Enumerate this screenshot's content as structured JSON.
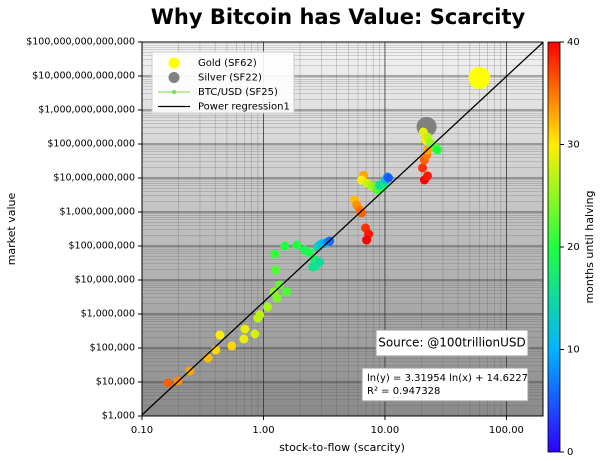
{
  "chart_data": {
    "type": "scatter",
    "title": "Why Bitcoin has Value: Scarcity",
    "xlabel": "stock-to-flow (scarcity)",
    "ylabel": "market value",
    "xscale": "log",
    "yscale": "log",
    "xlim": [
      0.1,
      200
    ],
    "ylim": [
      1000,
      100000000000000
    ],
    "xticks": [
      {
        "value": 0.1,
        "label": "0.10"
      },
      {
        "value": 1,
        "label": "1.00"
      },
      {
        "value": 10,
        "label": "10.00"
      },
      {
        "value": 100,
        "label": "100.00"
      }
    ],
    "yticks": [
      {
        "value": 1000,
        "label": "$1,000"
      },
      {
        "value": 10000,
        "label": "$10,000"
      },
      {
        "value": 100000,
        "label": "$100,000"
      },
      {
        "value": 1000000,
        "label": "$1,000,000"
      },
      {
        "value": 10000000,
        "label": "$10,000,000"
      },
      {
        "value": 100000000,
        "label": "$100,000,000"
      },
      {
        "value": 1000000000,
        "label": "$1,000,000,000"
      },
      {
        "value": 10000000000,
        "label": "$10,000,000,000"
      },
      {
        "value": 100000000000,
        "label": "$100,000,000,000"
      },
      {
        "value": 1000000000000,
        "label": "$1,000,000,000,000"
      },
      {
        "value": 10000000000000,
        "label": "$10,000,000,000,000"
      },
      {
        "value": 100000000000000,
        "label": "$100,000,000,000,000"
      }
    ],
    "grid": true,
    "legend": "upper left",
    "series": [
      {
        "name": "Gold (SF62)",
        "color": "#ffff00",
        "x": [
          60
        ],
        "values": [
          8700000000000
        ]
      },
      {
        "name": "Silver (SF22)",
        "color": "#808080",
        "x": [
          22
        ],
        "values": [
          320000000000
        ]
      },
      {
        "name": "BTC/USD (SF25)",
        "color": "#7ed957",
        "x": [
          0.164,
          0.198,
          0.248,
          0.349,
          0.405,
          0.549,
          0.437,
          0.689,
          0.703,
          0.849,
          0.898,
          0.933,
          1.08,
          1.29,
          1.22,
          1.55,
          1.36,
          1.26,
          1.24,
          1.5,
          1.88,
          2.18,
          2.4,
          2.64,
          2.69,
          2.54,
          2.9,
          2.79,
          2.9,
          3.01,
          3.19,
          3.38,
          3.51,
          6.67,
          5.62,
          5.85,
          6.18,
          6.42,
          6.93,
          7.33,
          7.06,
          6.42,
          7.06,
          7.76,
          8.37,
          8.69,
          9.38,
          9.03,
          9.93,
          10.1,
          10.5,
          10.7,
          21.1,
          22.4,
          20.4,
          21.1,
          22,
          22.4,
          21.6,
          20.7,
          22.4,
          23.7,
          26.1,
          27
        ],
        "values": [
          9350,
          10700,
          21100,
          50800,
          87300,
          115000,
          241000,
          184000,
          362000,
          258000,
          762000,
          935000,
          1610000,
          2960000,
          4440000,
          4440000,
          7130000,
          19700000,
          58200000,
          100000000,
          107000000,
          76200000,
          62200000,
          38700000,
          25800000,
          24100000,
          33800000,
          93500000,
          107000000,
          115000000,
          122000000,
          131000000,
          140000000,
          12200000000,
          2250000000,
          1610000000,
          1150000000,
          935000000,
          338000000,
          225000000,
          150000000,
          8730000000,
          7130000000,
          5820000000,
          5820000000,
          4440000000,
          5080000000,
          6220000000,
          7130000000,
          8730000000,
          10700000000,
          10000000000,
          8730000000,
          11500000000,
          19700000000,
          33800000000,
          47400000000,
          66700000000,
          131000000000,
          225000000000,
          161000000000,
          107000000000,
          76200000000,
          66700000000
        ],
        "months": [
          36,
          34,
          33,
          32,
          31,
          31,
          30,
          29,
          29,
          28,
          27,
          27,
          26,
          24,
          25,
          22,
          23,
          22,
          21,
          20,
          20,
          19,
          19,
          18,
          17,
          16,
          15,
          14,
          13,
          12,
          10,
          8,
          6,
          33,
          32,
          34,
          35,
          36,
          38,
          39,
          40,
          30,
          28,
          26,
          24,
          22,
          20,
          15,
          17,
          12,
          8,
          5,
          40,
          39,
          38,
          36,
          35,
          33,
          30,
          29,
          27,
          25,
          22,
          20
        ]
      },
      {
        "name": "Power regression1",
        "color": "#000000",
        "slope": 3.31954,
        "intercept": 14.6227
      }
    ],
    "colorbar": {
      "label": "months until halving",
      "lim": [
        0,
        40
      ],
      "ticks": [
        0,
        10,
        20,
        30,
        40
      ],
      "colormap": [
        "#3000ff",
        "#00b4ff",
        "#20ff40",
        "#ffee00",
        "#ff0000"
      ]
    },
    "annotations": [
      {
        "text": "Source: @100trillionUSD"
      },
      {
        "lines": [
          "ln(y) = 3.31954 ln(x) + 14.6227",
          "R² = 0.947328"
        ]
      }
    ]
  }
}
